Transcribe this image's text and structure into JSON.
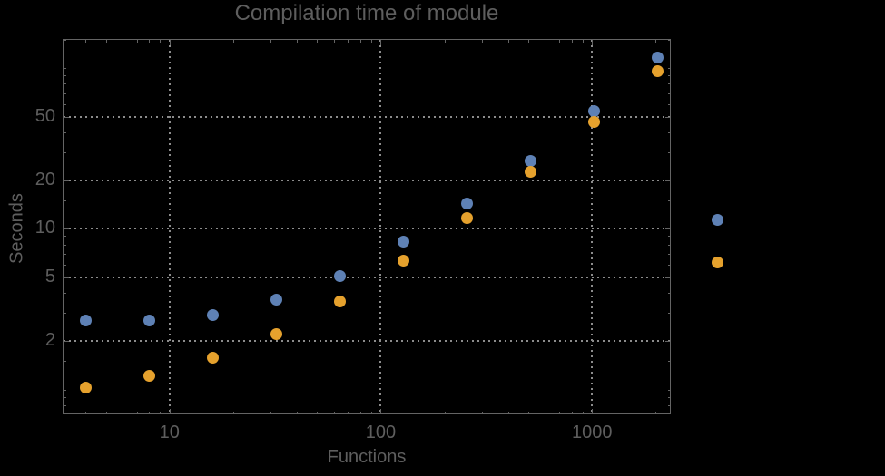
{
  "chart_data": {
    "type": "scatter",
    "title": "Compilation time of module",
    "xlabel": "Functions",
    "ylabel": "Seconds",
    "x_scale": "log",
    "y_scale": "log",
    "xlim": [
      3.12,
      2360
    ],
    "ylim": [
      0.7,
      152
    ],
    "x_ticks": [
      10,
      100,
      1000
    ],
    "y_ticks": [
      2,
      5,
      10,
      20,
      50
    ],
    "grid": "dotted",
    "x": [
      4,
      8,
      16,
      32,
      64,
      128,
      256,
      512,
      1024,
      2048
    ],
    "series": [
      {
        "name": "blue-series",
        "color": "#5e81b5",
        "values": [
          2.7,
          2.7,
          2.9,
          3.6,
          5.1,
          8.3,
          14.4,
          26.5,
          54,
          116
        ]
      },
      {
        "name": "orange-series",
        "color": "#e5a12d",
        "values": [
          1.03,
          1.22,
          1.58,
          2.2,
          3.55,
          6.3,
          11.6,
          22.5,
          46.5,
          96
        ]
      }
    ],
    "legend": {
      "position": "right-outside",
      "markers": [
        {
          "name": "blue-series",
          "color": "#5e81b5"
        },
        {
          "name": "orange-series",
          "color": "#e5a12d"
        }
      ]
    }
  },
  "colors": {
    "background": "#000000",
    "frame": "#646464",
    "grid": "#8c8c8c",
    "text": "#5e5e5e"
  }
}
